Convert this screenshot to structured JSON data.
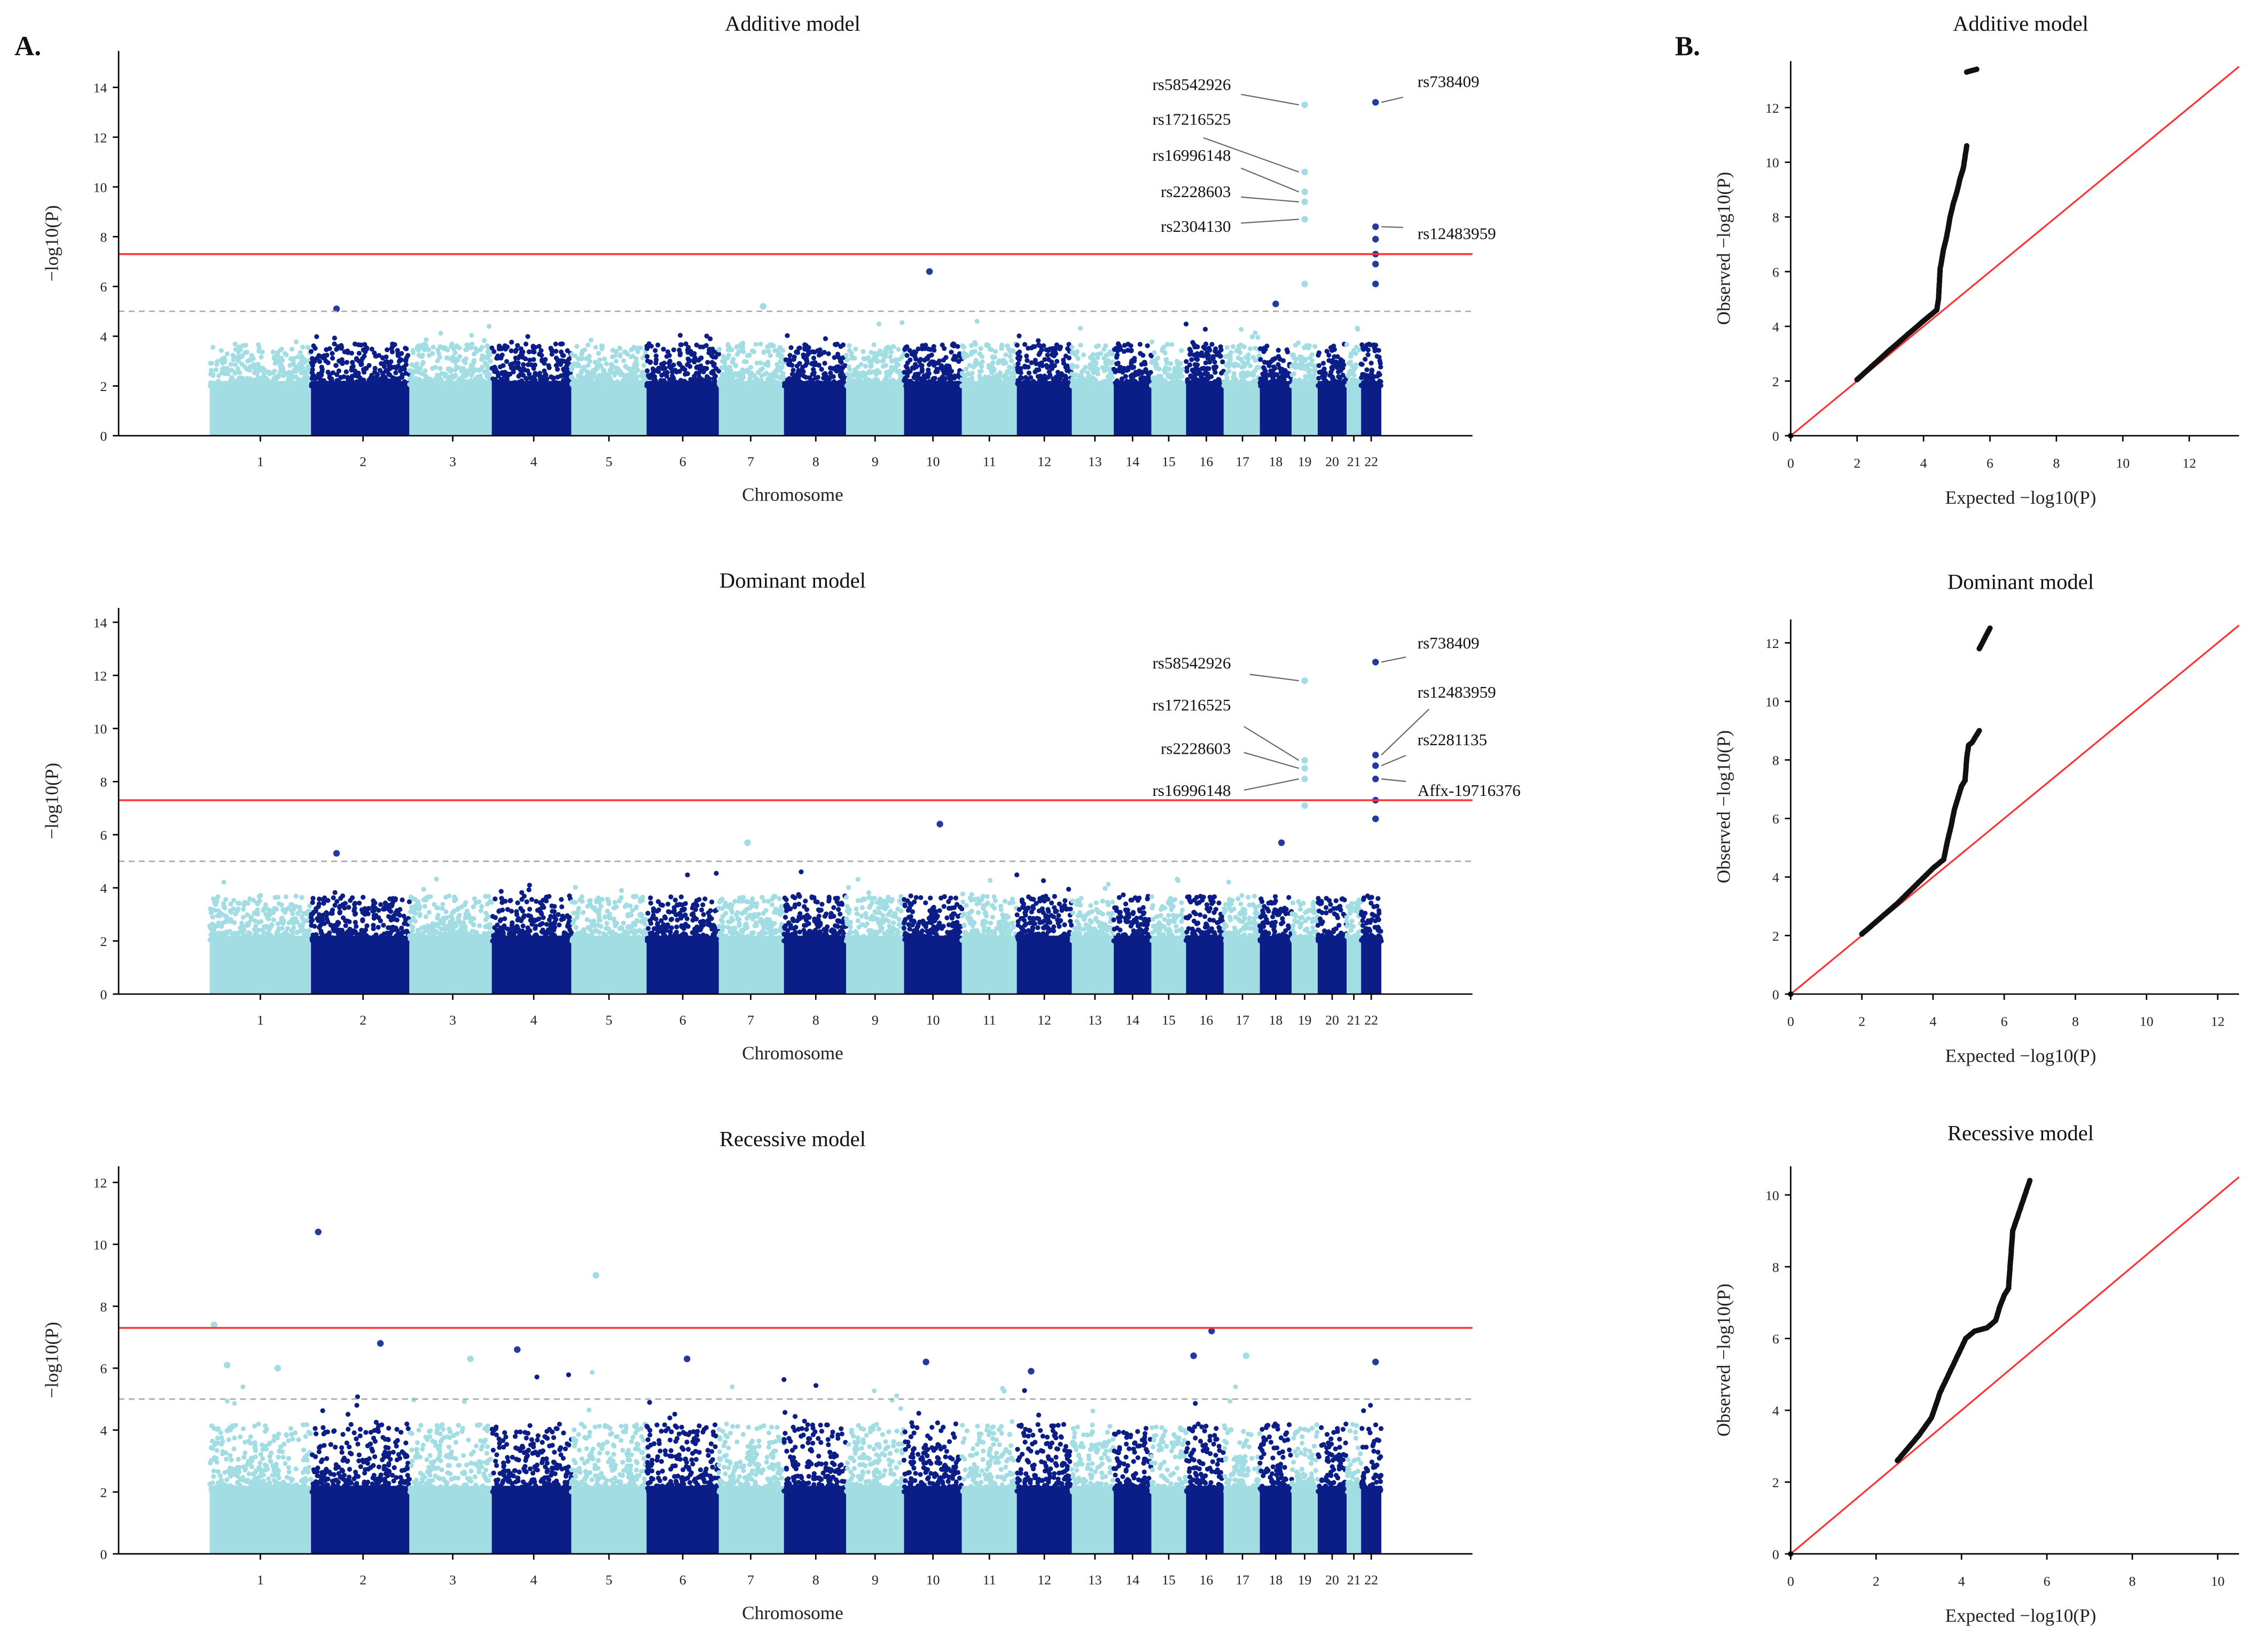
{
  "panel_labels": {
    "a": "A.",
    "b": "B."
  },
  "colors": {
    "light": "#a3dde4",
    "dark": "#0b1d87",
    "hit_dark": "#243a9c",
    "genomewide": "#ff3333",
    "suggestive": "#aaaaaa",
    "qq": "#111111"
  },
  "chart_data": [
    {
      "type": "scatter",
      "subtype": "manhattan",
      "title": "Additive model",
      "xlabel": "Chromosome",
      "ylabel": "−log10(P)",
      "ylim": [
        0,
        15
      ],
      "yticks": [
        0,
        2,
        4,
        6,
        8,
        10,
        12,
        14
      ],
      "chromosomes": [
        "1",
        "2",
        "3",
        "4",
        "5",
        "6",
        "7",
        "8",
        "9",
        "10",
        "11",
        "12",
        "13",
        "14",
        "15",
        "16",
        "17",
        "18",
        "19",
        "20",
        "21",
        "22"
      ],
      "genomewide_threshold": 7.3,
      "suggestive_threshold": 5,
      "hits": [
        {
          "chr": "19",
          "p": 13.3,
          "label": "rs58542926"
        },
        {
          "chr": "19",
          "p": 10.6,
          "label": "rs17216525"
        },
        {
          "chr": "19",
          "p": 9.8,
          "label": "rs16996148"
        },
        {
          "chr": "19",
          "p": 9.4,
          "label": "rs2228603"
        },
        {
          "chr": "19",
          "p": 8.7,
          "label": "rs2304130"
        },
        {
          "chr": "19",
          "p": 6.1
        },
        {
          "chr": "22",
          "p": 13.4,
          "label": "rs738409"
        },
        {
          "chr": "22",
          "p": 8.4,
          "label": "rs12483959"
        },
        {
          "chr": "22",
          "p": 7.9
        },
        {
          "chr": "22",
          "p": 7.3
        },
        {
          "chr": "22",
          "p": 6.9
        },
        {
          "chr": "22",
          "p": 6.1
        },
        {
          "chr": "10",
          "p": 6.6
        },
        {
          "chr": "2",
          "p": 5.1
        },
        {
          "chr": "7",
          "p": 5.2
        },
        {
          "chr": "18",
          "p": 5.3
        }
      ]
    },
    {
      "type": "scatter",
      "subtype": "manhattan",
      "title": "Dominant model",
      "xlabel": "Chromosome",
      "ylabel": "−log10(P)",
      "ylim": [
        0,
        14.5
      ],
      "yticks": [
        0,
        2,
        4,
        6,
        8,
        10,
        12,
        14
      ],
      "chromosomes": [
        "1",
        "2",
        "3",
        "4",
        "5",
        "6",
        "7",
        "8",
        "9",
        "10",
        "11",
        "12",
        "13",
        "14",
        "15",
        "16",
        "17",
        "18",
        "19",
        "20",
        "21",
        "22"
      ],
      "genomewide_threshold": 7.3,
      "suggestive_threshold": 5,
      "hits": [
        {
          "chr": "19",
          "p": 11.8,
          "label": "rs58542926"
        },
        {
          "chr": "19",
          "p": 8.8,
          "label": "rs17216525"
        },
        {
          "chr": "19",
          "p": 8.5,
          "label": "rs2228603"
        },
        {
          "chr": "19",
          "p": 8.1,
          "label": "rs16996148"
        },
        {
          "chr": "19",
          "p": 7.1
        },
        {
          "chr": "22",
          "p": 12.5,
          "label": "rs738409"
        },
        {
          "chr": "22",
          "p": 9.0,
          "label": "rs12483959"
        },
        {
          "chr": "22",
          "p": 8.6,
          "label": "rs2281135"
        },
        {
          "chr": "22",
          "p": 8.1,
          "label": "Affx-19716376"
        },
        {
          "chr": "22",
          "p": 7.3
        },
        {
          "chr": "22",
          "p": 6.6
        },
        {
          "chr": "10",
          "p": 6.4
        },
        {
          "chr": "7",
          "p": 5.7
        },
        {
          "chr": "2",
          "p": 5.3
        },
        {
          "chr": "18",
          "p": 5.7
        }
      ]
    },
    {
      "type": "scatter",
      "subtype": "manhattan",
      "title": "Recessive model",
      "xlabel": "Chromosome",
      "ylabel": "−log10(P)",
      "ylim": [
        0,
        12.5
      ],
      "yticks": [
        0,
        2,
        4,
        6,
        8,
        10,
        12
      ],
      "chromosomes": [
        "1",
        "2",
        "3",
        "4",
        "5",
        "6",
        "7",
        "8",
        "9",
        "10",
        "11",
        "12",
        "13",
        "14",
        "15",
        "16",
        "17",
        "18",
        "19",
        "20",
        "21",
        "22"
      ],
      "genomewide_threshold": 7.3,
      "suggestive_threshold": 5,
      "hits": [
        {
          "chr": "1",
          "p": 7.4
        },
        {
          "chr": "1",
          "p": 6.1
        },
        {
          "chr": "2",
          "p": 10.4
        },
        {
          "chr": "5",
          "p": 9.0
        },
        {
          "chr": "16",
          "p": 7.2
        },
        {
          "chr": "2",
          "p": 6.8
        },
        {
          "chr": "4",
          "p": 6.6
        },
        {
          "chr": "3",
          "p": 6.3
        },
        {
          "chr": "6",
          "p": 6.3
        },
        {
          "chr": "10",
          "p": 6.2
        },
        {
          "chr": "16",
          "p": 6.4
        },
        {
          "chr": "17",
          "p": 6.4
        },
        {
          "chr": "22",
          "p": 6.2
        },
        {
          "chr": "12",
          "p": 5.9
        },
        {
          "chr": "1",
          "p": 6.0
        }
      ]
    },
    {
      "type": "scatter",
      "subtype": "qq",
      "title": "Additive model",
      "xlabel": "Expected −log10(P)",
      "ylabel": "Observed −log10(P)",
      "xlim": [
        0,
        13.5
      ],
      "ylim": [
        0,
        13.7
      ],
      "xticks": [
        0,
        2,
        4,
        6,
        8,
        10,
        12
      ],
      "yticks": [
        0,
        2,
        4,
        6,
        8,
        10,
        12
      ],
      "points": [
        [
          0,
          0
        ],
        [
          2,
          2.05
        ],
        [
          3,
          3.15
        ],
        [
          4,
          4.2
        ],
        [
          4.4,
          4.6
        ],
        [
          4.45,
          5.0
        ],
        [
          4.5,
          6.1
        ],
        [
          4.6,
          6.8
        ],
        [
          4.7,
          7.3
        ],
        [
          4.8,
          8.0
        ],
        [
          4.9,
          8.5
        ],
        [
          5.0,
          8.9
        ],
        [
          5.1,
          9.4
        ],
        [
          5.2,
          9.8
        ],
        [
          5.3,
          10.6
        ],
        [
          5.3,
          13.3
        ],
        [
          5.6,
          13.4
        ]
      ]
    },
    {
      "type": "scatter",
      "subtype": "qq",
      "title": "Dominant model",
      "xlabel": "Expected −log10(P)",
      "ylabel": "Observed −log10(P)",
      "xlim": [
        0,
        12.6
      ],
      "ylim": [
        0,
        12.8
      ],
      "xticks": [
        0,
        2,
        4,
        6,
        8,
        10,
        12
      ],
      "yticks": [
        0,
        2,
        4,
        6,
        8,
        10,
        12
      ],
      "points": [
        [
          0,
          0
        ],
        [
          2,
          2.05
        ],
        [
          3,
          3.1
        ],
        [
          4,
          4.3
        ],
        [
          4.3,
          4.6
        ],
        [
          4.4,
          5.2
        ],
        [
          4.5,
          5.7
        ],
        [
          4.6,
          6.3
        ],
        [
          4.7,
          6.7
        ],
        [
          4.8,
          7.1
        ],
        [
          4.9,
          7.3
        ],
        [
          4.95,
          8.1
        ],
        [
          5.0,
          8.5
        ],
        [
          5.1,
          8.6
        ],
        [
          5.2,
          8.8
        ],
        [
          5.3,
          9.0
        ],
        [
          5.3,
          11.8
        ],
        [
          5.6,
          12.5
        ]
      ]
    },
    {
      "type": "scatter",
      "subtype": "qq",
      "title": "Recessive model",
      "xlabel": "Expected −log10(P)",
      "ylabel": "Observed −log10(P)",
      "xlim": [
        0,
        10.5
      ],
      "ylim": [
        0,
        10.8
      ],
      "xticks": [
        0,
        2,
        4,
        6,
        8,
        10
      ],
      "yticks": [
        0,
        2,
        4,
        6,
        8,
        10
      ],
      "points": [
        [
          0,
          0
        ],
        [
          2.5,
          2.6
        ],
        [
          3,
          3.3
        ],
        [
          3.3,
          3.8
        ],
        [
          3.5,
          4.5
        ],
        [
          3.7,
          5.0
        ],
        [
          3.9,
          5.5
        ],
        [
          4.1,
          6.0
        ],
        [
          4.3,
          6.2
        ],
        [
          4.6,
          6.3
        ],
        [
          4.8,
          6.5
        ],
        [
          4.9,
          6.9
        ],
        [
          5.0,
          7.2
        ],
        [
          5.1,
          7.4
        ],
        [
          5.2,
          9.0
        ],
        [
          5.6,
          10.4
        ]
      ]
    }
  ]
}
